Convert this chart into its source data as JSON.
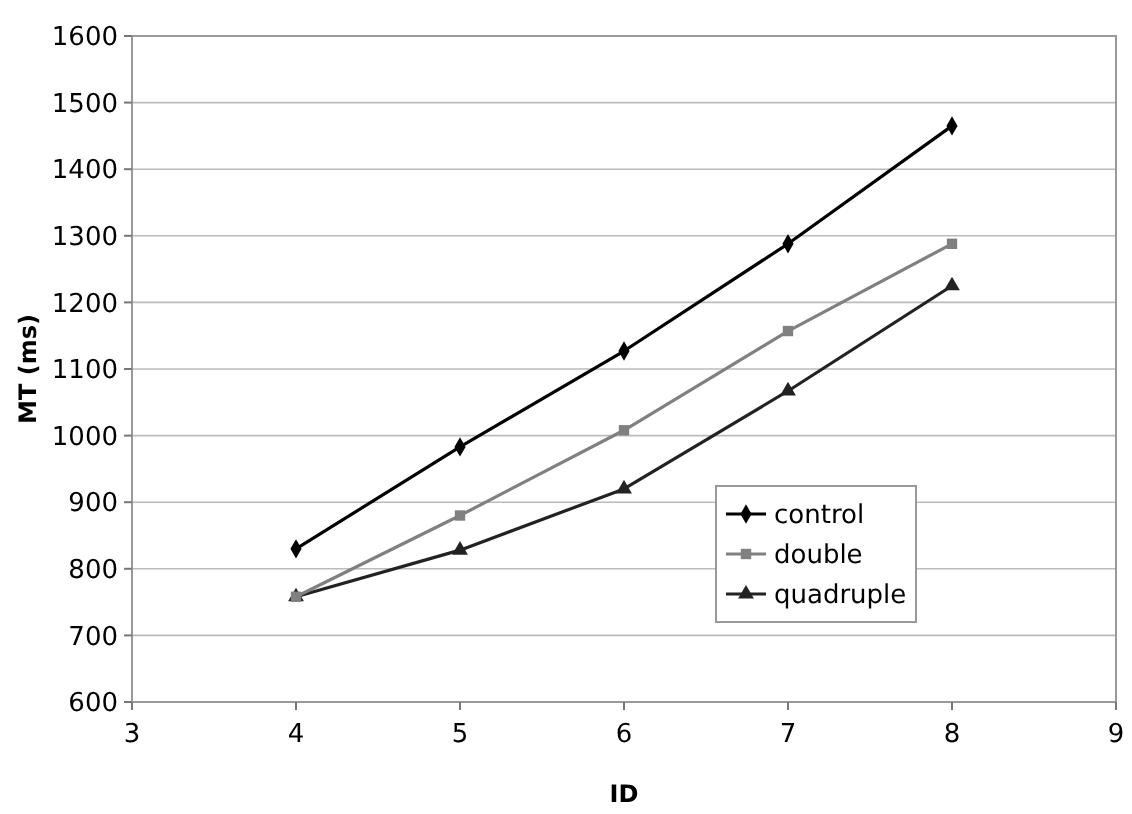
{
  "chart_data": {
    "type": "line",
    "xlabel": "ID",
    "ylabel": "MT (ms)",
    "xlim": [
      3,
      9
    ],
    "xticks": [
      3,
      4,
      5,
      6,
      7,
      8,
      9
    ],
    "ylim": [
      600,
      1600
    ],
    "yticks": [
      600,
      700,
      800,
      900,
      1000,
      1100,
      1200,
      1300,
      1400,
      1500,
      1600
    ],
    "grid": "y",
    "legend": "bottom right",
    "x": [
      4,
      5,
      6,
      7,
      8
    ],
    "series": [
      {
        "name": "control",
        "color": "#000000",
        "marker": "diamond",
        "values": [
          830,
          983,
          1127,
          1288,
          1465
        ]
      },
      {
        "name": "double",
        "color": "#808080",
        "marker": "square",
        "values": [
          758,
          880,
          1008,
          1157,
          1288
        ]
      },
      {
        "name": "quadruple",
        "color": "#222222",
        "marker": "triangle",
        "values": [
          758,
          828,
          920,
          1067,
          1225
        ]
      }
    ]
  }
}
